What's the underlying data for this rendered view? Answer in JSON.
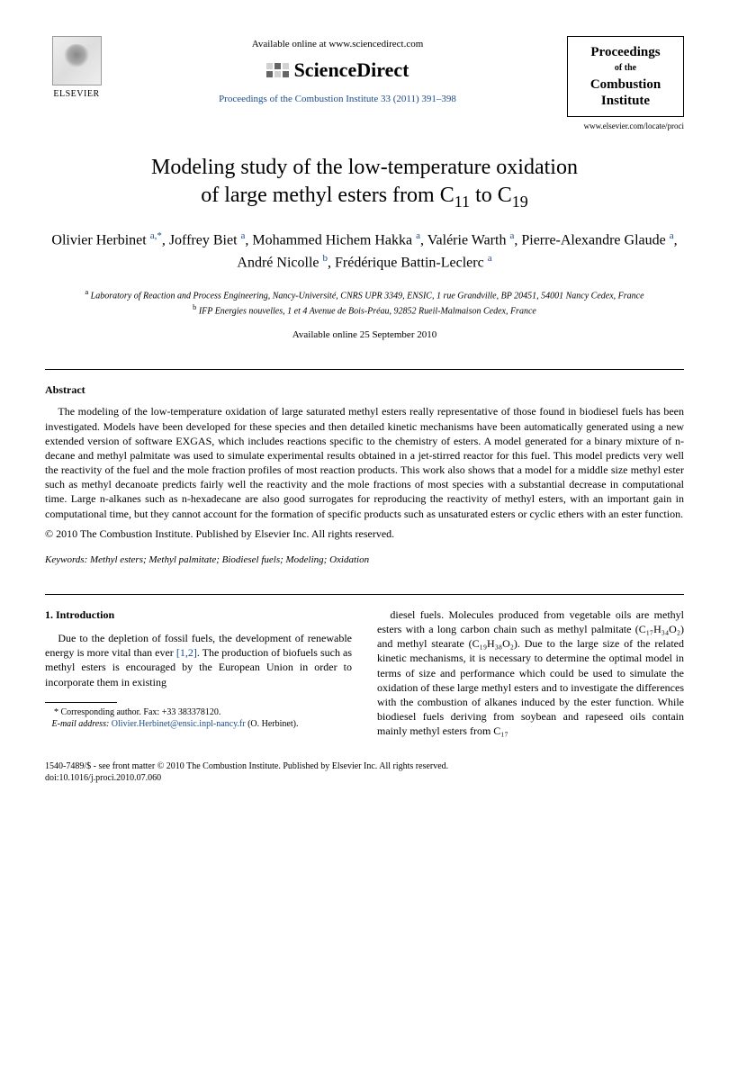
{
  "header": {
    "publisher_name": "ELSEVIER",
    "available_text": "Available online at www.sciencedirect.com",
    "sd_brand": "ScienceDirect",
    "journal_ref": "Proceedings of the Combustion Institute 33 (2011) 391–398",
    "journal_box": {
      "line1": "Proceedings",
      "line2": "of the",
      "line3": "Combustion",
      "line4": "Institute"
    },
    "journal_url": "www.elsevier.com/locate/proci"
  },
  "title_line1": "Modeling study of the low-temperature oxidation",
  "title_line2": "of large methyl esters from C",
  "title_sub1": "11",
  "title_mid": " to C",
  "title_sub2": "19",
  "authors_html": "Olivier Herbinet <sup>a,*</sup>, Joffrey Biet <sup>a</sup>, Mohammed Hichem Hakka <sup>a</sup>, Valérie Warth <sup>a</sup>, Pierre-Alexandre Glaude <sup>a</sup>, André Nicolle <sup>b</sup>, Frédérique Battin-Leclerc <sup>a</sup>",
  "affiliations": {
    "a": "Laboratory of Reaction and Process Engineering, Nancy-Université, CNRS UPR 3349, ENSIC, 1 rue Grandville, BP 20451, 54001 Nancy Cedex, France",
    "b": "IFP Energies nouvelles, 1 et 4 Avenue de Bois-Préau, 92852 Rueil-Malmaison Cedex, France"
  },
  "date_available": "Available online 25 September 2010",
  "abstract_label": "Abstract",
  "abstract_text": "The modeling of the low-temperature oxidation of large saturated methyl esters really representative of those found in biodiesel fuels has been investigated. Models have been developed for these species and then detailed kinetic mechanisms have been automatically generated using a new extended version of software EXGAS, which includes reactions specific to the chemistry of esters. A model generated for a binary mixture of n-decane and methyl palmitate was used to simulate experimental results obtained in a jet-stirred reactor for this fuel. This model predicts very well the reactivity of the fuel and the mole fraction profiles of most reaction products. This work also shows that a model for a middle size methyl ester such as methyl decanoate predicts fairly well the reactivity and the mole fractions of most species with a substantial decrease in computational time. Large n-alkanes such as n-hexadecane are also good surrogates for reproducing the reactivity of methyl esters, with an important gain in computational time, but they cannot account for the formation of specific products such as unsaturated esters or cyclic ethers with an ester function.",
  "copyright": "© 2010 The Combustion Institute. Published by Elsevier Inc. All rights reserved.",
  "keywords_label": "Keywords:",
  "keywords": "Methyl esters; Methyl palmitate; Biodiesel fuels; Modeling; Oxidation",
  "section1_head": "1. Introduction",
  "col1_text": "Due to the depletion of fossil fuels, the development of renewable energy is more vital than ever [1,2]. The production of biofuels such as methyl esters is encouraged by the European Union in order to incorporate them in existing",
  "col2_text": "diesel fuels. Molecules produced from vegetable oils are methyl esters with a long carbon chain such as methyl palmitate (C₁₇H₃₄O₂) and methyl stearate (C₁₉H₃₈O₂). Due to the large size of the related kinetic mechanisms, it is necessary to determine the optimal model in terms of size and performance which could be used to simulate the oxidation of these large methyl esters and to investigate the differences with the combustion of alkanes induced by the ester function. While biodiesel fuels deriving from soybean and rapeseed oils contain mainly methyl esters from C₁₇",
  "corresponding": {
    "label": "* Corresponding author. Fax: +33 383378120.",
    "email_label": "E-mail address:",
    "email": "Olivier.Herbinet@ensic.inpl-nancy.fr",
    "name": "(O. Herbinet)."
  },
  "footer": {
    "line1": "1540-7489/$ - see front matter © 2010 The Combustion Institute. Published by Elsevier Inc. All rights reserved.",
    "line2": "doi:10.1016/j.proci.2010.07.060"
  },
  "colors": {
    "link": "#1a4b8c",
    "text": "#000000",
    "background": "#ffffff"
  }
}
